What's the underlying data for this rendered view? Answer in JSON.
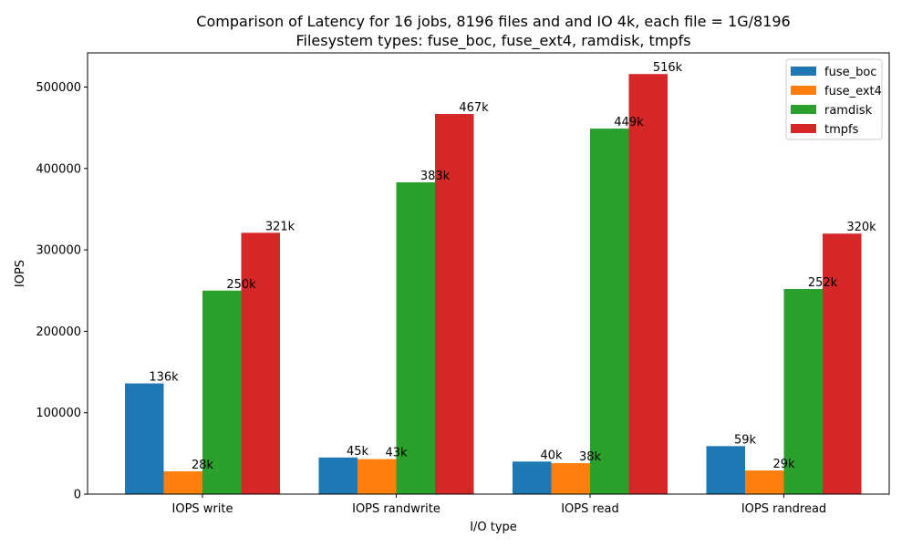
{
  "chart_data": {
    "type": "bar",
    "title_line1": "Comparison of Latency for 16 jobs, 8196 files and  and IO 4k, each file = 1G/8196",
    "title_line2": "Filesystem types: fuse_boc, fuse_ext4, ramdisk, tmpfs",
    "xlabel": "I/O type",
    "ylabel": "IOPS",
    "categories": [
      "IOPS write",
      "IOPS randwrite",
      "IOPS read",
      "IOPS randread"
    ],
    "ylim": [
      0,
      542000
    ],
    "yticks": [
      0,
      100000,
      200000,
      300000,
      400000,
      500000
    ],
    "ytick_labels": [
      "0",
      "100000",
      "200000",
      "300000",
      "400000",
      "500000"
    ],
    "legend_position": "top-right",
    "grid": false,
    "series": [
      {
        "name": "fuse_boc",
        "color": "#1f77b4",
        "values": [
          136000,
          45000,
          40000,
          59000
        ],
        "labels": [
          "136k",
          "45k",
          "40k",
          "59k"
        ]
      },
      {
        "name": "fuse_ext4",
        "color": "#ff7f0e",
        "values": [
          28000,
          43000,
          38000,
          29000
        ],
        "labels": [
          "28k",
          "43k",
          "38k",
          "29k"
        ]
      },
      {
        "name": "ramdisk",
        "color": "#2ca02c",
        "values": [
          250000,
          383000,
          449000,
          252000
        ],
        "labels": [
          "250k",
          "383k",
          "449k",
          "252k"
        ]
      },
      {
        "name": "tmpfs",
        "color": "#d62728",
        "values": [
          321000,
          467000,
          516000,
          320000
        ],
        "labels": [
          "321k",
          "467k",
          "516k",
          "320k"
        ]
      }
    ]
  }
}
